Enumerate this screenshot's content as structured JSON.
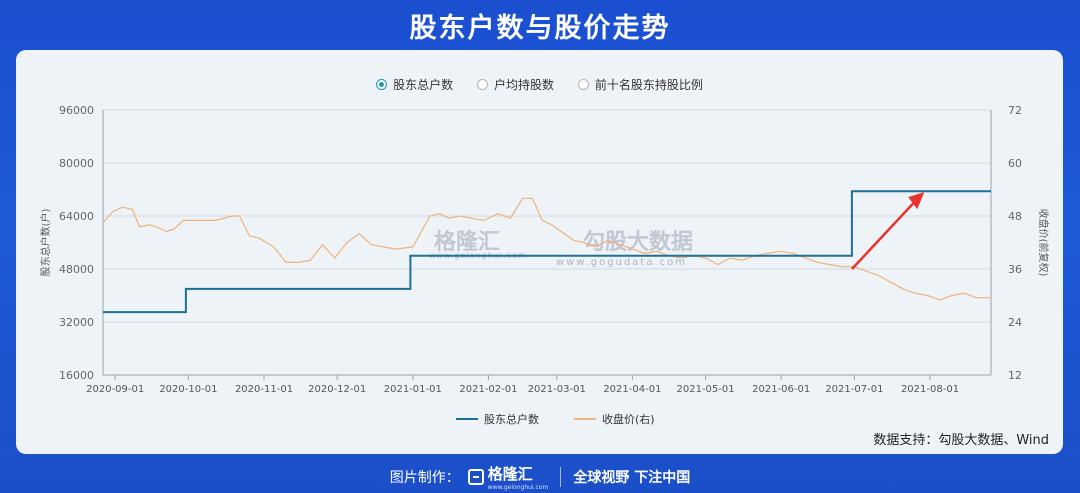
{
  "header": {
    "title": "股东户数与股价走势"
  },
  "toggles": [
    {
      "label": "股东总户数",
      "selected": true
    },
    {
      "label": "户均持股数",
      "selected": false
    },
    {
      "label": "前十名股东持股比例",
      "selected": false
    }
  ],
  "source": "数据支持：勾股大数据、Wind",
  "watermark": {
    "brand1": "格隆汇",
    "brand1_url": "www.gelonghui.com",
    "brand2": "勾股大数据",
    "brand2_url": "www.gogudata.com"
  },
  "footer": {
    "made_by": "图片制作：",
    "brand": "格隆汇",
    "brand_url": "www.gelonghui.com",
    "slogan": "全球视野 下注中国"
  },
  "colors": {
    "holders": "#1f6f99",
    "price": "#f0b27a",
    "arrow": "#e8322c",
    "accent": "#1c9bb0"
  },
  "chart_data": {
    "type": "line",
    "ylabel_left": "股东总户数(户)",
    "ylabel_right": "收盘价(前复权)",
    "ylim_left": [
      16000,
      96000
    ],
    "ylim_right": [
      12,
      72
    ],
    "yticks_left": [
      "16000",
      "32000",
      "48000",
      "64000",
      "80000",
      "96000"
    ],
    "yticks_right": [
      "12",
      "24",
      "36",
      "48",
      "60",
      "72"
    ],
    "xlim": [
      "2020-08-27",
      "2021-08-26"
    ],
    "xticks": [
      "2020-09-01",
      "2020-10-01",
      "2020-11-01",
      "2020-12-01",
      "2021-01-01",
      "2021-02-01",
      "2021-03-01",
      "2021-04-01",
      "2021-05-01",
      "2021-06-01",
      "2021-07-01",
      "2021-08-01"
    ],
    "grid": true,
    "legend": "bottom",
    "series": [
      {
        "name": "股东总户数",
        "axis": "left",
        "step": true,
        "points": [
          [
            "2020-08-27",
            35000
          ],
          [
            "2020-09-30",
            35000
          ],
          [
            "2020-09-30",
            42000
          ],
          [
            "2020-12-31",
            42000
          ],
          [
            "2020-12-31",
            52000
          ],
          [
            "2021-06-30",
            52000
          ],
          [
            "2021-06-30",
            71500
          ],
          [
            "2021-08-26",
            71500
          ]
        ]
      },
      {
        "name": "收盘价(右)",
        "axis": "right",
        "points": [
          [
            "2020-08-27",
            46.5
          ],
          [
            "2020-08-31",
            49.0
          ],
          [
            "2020-09-04",
            50.0
          ],
          [
            "2020-09-08",
            49.5
          ],
          [
            "2020-09-11",
            45.5
          ],
          [
            "2020-09-15",
            46.0
          ],
          [
            "2020-09-18",
            45.5
          ],
          [
            "2020-09-22",
            44.5
          ],
          [
            "2020-09-25",
            45.0
          ],
          [
            "2020-09-29",
            47.0
          ],
          [
            "2020-10-05",
            47.0
          ],
          [
            "2020-10-12",
            47.0
          ],
          [
            "2020-10-19",
            48.0
          ],
          [
            "2020-10-22",
            48.0
          ],
          [
            "2020-10-26",
            43.5
          ],
          [
            "2020-10-30",
            43.0
          ],
          [
            "2020-11-05",
            41.0
          ],
          [
            "2020-11-10",
            37.5
          ],
          [
            "2020-11-15",
            37.5
          ],
          [
            "2020-11-20",
            38.0
          ],
          [
            "2020-11-25",
            41.5
          ],
          [
            "2020-11-30",
            38.5
          ],
          [
            "2020-12-05",
            42.0
          ],
          [
            "2020-12-10",
            44.0
          ],
          [
            "2020-12-15",
            41.5
          ],
          [
            "2020-12-20",
            41.0
          ],
          [
            "2020-12-25",
            40.5
          ],
          [
            "2021-01-01",
            41.0
          ],
          [
            "2021-01-05",
            45.0
          ],
          [
            "2021-01-08",
            48.0
          ],
          [
            "2021-01-12",
            48.5
          ],
          [
            "2021-01-16",
            47.5
          ],
          [
            "2021-01-20",
            48.0
          ],
          [
            "2021-01-25",
            47.5
          ],
          [
            "2021-01-30",
            47.0
          ],
          [
            "2021-02-05",
            48.5
          ],
          [
            "2021-02-10",
            47.5
          ],
          [
            "2021-02-15",
            52.0
          ],
          [
            "2021-02-19",
            52.0
          ],
          [
            "2021-02-23",
            47.0
          ],
          [
            "2021-02-27",
            46.0
          ],
          [
            "2021-03-04",
            44.0
          ],
          [
            "2021-03-08",
            42.5
          ],
          [
            "2021-03-12",
            42.0
          ],
          [
            "2021-03-17",
            41.0
          ],
          [
            "2021-03-22",
            42.5
          ],
          [
            "2021-03-27",
            41.5
          ],
          [
            "2021-04-01",
            40.5
          ],
          [
            "2021-04-06",
            39.5
          ],
          [
            "2021-04-11",
            40.0
          ],
          [
            "2021-04-16",
            39.0
          ],
          [
            "2021-04-21",
            38.5
          ],
          [
            "2021-04-26",
            39.0
          ],
          [
            "2021-05-01",
            38.5
          ],
          [
            "2021-05-06",
            37.0
          ],
          [
            "2021-05-11",
            38.5
          ],
          [
            "2021-05-16",
            38.0
          ],
          [
            "2021-05-21",
            39.0
          ],
          [
            "2021-05-26",
            39.5
          ],
          [
            "2021-06-01",
            40.0
          ],
          [
            "2021-06-06",
            39.5
          ],
          [
            "2021-06-11",
            38.5
          ],
          [
            "2021-06-16",
            37.5
          ],
          [
            "2021-06-21",
            37.0
          ],
          [
            "2021-06-26",
            36.5
          ],
          [
            "2021-07-01",
            36.5
          ],
          [
            "2021-07-06",
            35.5
          ],
          [
            "2021-07-11",
            34.5
          ],
          [
            "2021-07-16",
            33.0
          ],
          [
            "2021-07-21",
            31.5
          ],
          [
            "2021-07-26",
            30.5
          ],
          [
            "2021-07-31",
            30.0
          ],
          [
            "2021-08-05",
            29.0
          ],
          [
            "2021-08-10",
            30.0
          ],
          [
            "2021-08-15",
            30.5
          ],
          [
            "2021-08-20",
            29.5
          ],
          [
            "2021-08-26",
            29.5
          ]
        ]
      }
    ]
  }
}
